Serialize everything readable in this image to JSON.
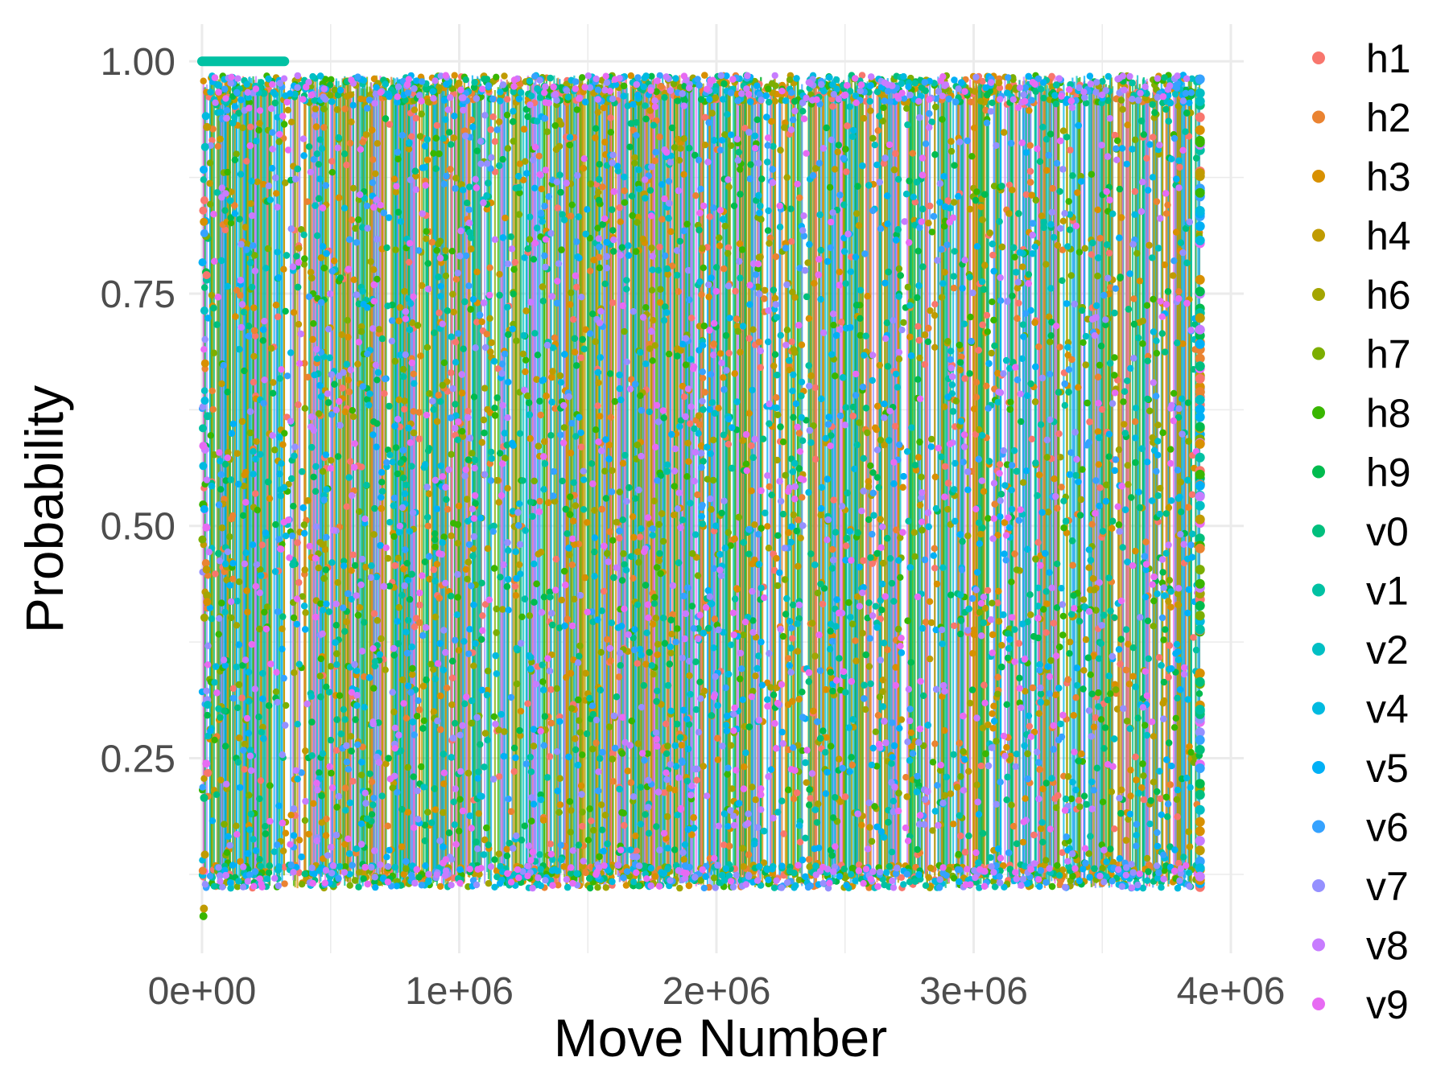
{
  "chart_data": {
    "type": "scatter",
    "title": "",
    "xlabel": "Move Number",
    "ylabel": "Probability",
    "xlim": [
      -50000,
      4050000
    ],
    "ylim": [
      0.04,
      1.04
    ],
    "x_ticks": [
      0,
      1000000,
      2000000,
      3000000,
      4000000
    ],
    "x_tick_labels": [
      "0e+00",
      "1e+06",
      "2e+06",
      "3e+06",
      "4e+06"
    ],
    "y_ticks": [
      0.25,
      0.5,
      0.75,
      1.0
    ],
    "y_tick_labels": [
      "0.25",
      "0.50",
      "0.75",
      "1.00"
    ],
    "grid": true,
    "legend_position": "right",
    "x_range_observed": [
      0,
      3880000
    ],
    "y_range_observed": [
      0.06,
      1.0
    ],
    "note_density": "points are densely overplotted so the panel is nearly solid colour",
    "series": [
      {
        "name": "h1",
        "color": "#F8766D"
      },
      {
        "name": "h2",
        "color": "#EA8331"
      },
      {
        "name": "h3",
        "color": "#D89000"
      },
      {
        "name": "h4",
        "color": "#C09B00"
      },
      {
        "name": "h6",
        "color": "#A3A500"
      },
      {
        "name": "h7",
        "color": "#7CAE00"
      },
      {
        "name": "h8",
        "color": "#39B600"
      },
      {
        "name": "h9",
        "color": "#00BB4E"
      },
      {
        "name": "v0",
        "color": "#00BF7D"
      },
      {
        "name": "v1",
        "color": "#00C1A3"
      },
      {
        "name": "v2",
        "color": "#00BFC4"
      },
      {
        "name": "v4",
        "color": "#00BAE0"
      },
      {
        "name": "v5",
        "color": "#00B0F6"
      },
      {
        "name": "v6",
        "color": "#35A2FF"
      },
      {
        "name": "v7",
        "color": "#9590FF"
      },
      {
        "name": "v8",
        "color": "#C77CFF"
      },
      {
        "name": "v9",
        "color": "#E76BF3"
      }
    ]
  }
}
